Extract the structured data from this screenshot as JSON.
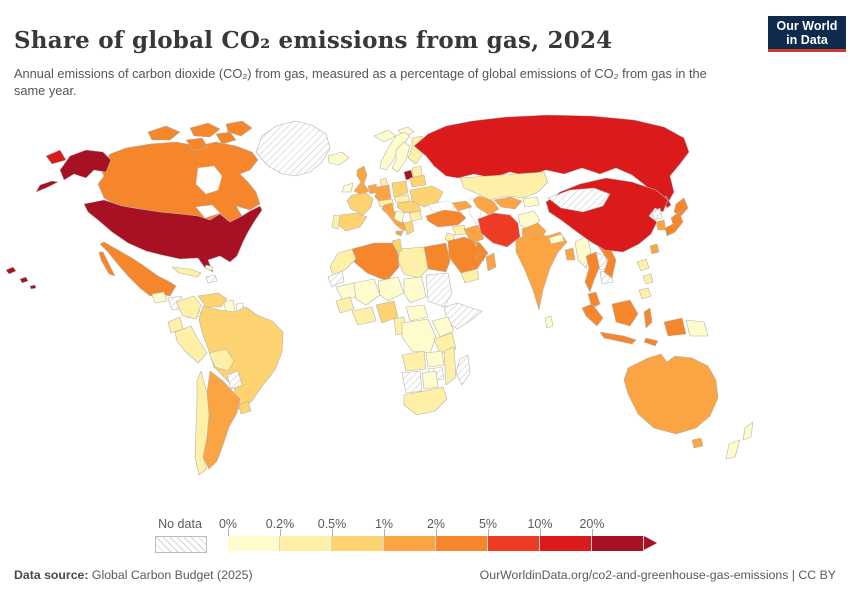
{
  "header": {
    "title": "Share of global CO₂ emissions from gas, 2024",
    "subtitle": "Annual emissions of carbon dioxide (CO₂) from gas, measured as a percentage of global emissions of CO₂ from gas in the same year.",
    "logo": {
      "line1": "Our World",
      "line2": "in Data",
      "bg_color": "#0E2A4C",
      "accent_color": "#D13A2A"
    }
  },
  "legend": {
    "no_data_label": "No data",
    "tick_labels": [
      "0%",
      "0.2%",
      "0.5%",
      "1%",
      "2%",
      "5%",
      "10%",
      "20%"
    ]
  },
  "footer": {
    "source_label": "Data source:",
    "source_text": " Global Carbon Budget (2025)",
    "credit_text": "OurWorldinData.org/co2-and-greenhouse-gas-emissions | CC BY"
  },
  "chart_data": {
    "type": "choropleth_map",
    "title": "Share of global CO₂ emissions from gas, 2024",
    "year": 2024,
    "unit": "% of global CO₂ emissions from gas",
    "legend_position": "bottom",
    "no_data_style": "hatched",
    "bins": [
      {
        "label": "0%–0.2%",
        "color": "#FEFBCC"
      },
      {
        "label": "0.2%–0.5%",
        "color": "#FEF0A6"
      },
      {
        "label": "0.5%–1%",
        "color": "#FDD271"
      },
      {
        "label": "1%–2%",
        "color": "#FAA443"
      },
      {
        "label": "2%–5%",
        "color": "#F6862B"
      },
      {
        "label": "5%–10%",
        "color": "#EE3C24"
      },
      {
        "label": "10%–20%",
        "color": "#DB1A1C"
      },
      {
        "label": "20%+",
        "color": "#A81023"
      }
    ],
    "country_bins": {
      "united-states": 7,
      "canada": 4,
      "mexico": 4,
      "greenland": "no-data",
      "cuba": 1,
      "hispaniola": "no-data",
      "guatemala": 0,
      "honduras-nicaragua": "no-data",
      "costa-rica-panama": 0,
      "bahamas": 0,
      "iceland": 0,
      "colombia": 1,
      "venezuela": 2,
      "guyana-suriname": 0,
      "french-guiana": "no-data",
      "ecuador": 1,
      "peru": 1,
      "brazil": 2,
      "bolivia": 1,
      "paraguay": "no-data",
      "uruguay": 2,
      "argentina": 3,
      "chile": 1,
      "ireland": 0,
      "united-kingdom": 3,
      "norway": 0,
      "sweden": 0,
      "finland": 1,
      "denmark": 1,
      "baltics": 1,
      "estonia": 7,
      "netherlands-belgium": 3,
      "germany": 3,
      "france": 2,
      "spain": 2,
      "portugal": 1,
      "italy": 3,
      "switzerland-austria": 1,
      "poland": 2,
      "czech-slovakia": 1,
      "hungary-romania": 2,
      "balkans": 0,
      "greece": 2,
      "bulgaria": 1,
      "ukraine": 2,
      "belarus": 2,
      "svalbard": 0,
      "russia": 6,
      "kazakhstan": 1,
      "uzbekistan": 3,
      "turkmenistan": 3,
      "kyrgyzstan-tajikistan": 0,
      "caucasus": 3,
      "turkey": 4,
      "syria": 1,
      "israel-jordan": 1,
      "iraq": 3,
      "iran": 5,
      "afghanistan": 0,
      "pakistan": 3,
      "saudi-arabia": 4,
      "yemen": 1,
      "oman": 3,
      "uae-qatar": 4,
      "kuwait": 3,
      "egypt": 4,
      "libya": 1,
      "tunisia": 2,
      "algeria": 4,
      "morocco": 1,
      "western-sahara": "no-data",
      "mauritania": 0,
      "mali": 0,
      "niger": 0,
      "chad": 0,
      "sudan": "no-data",
      "horn-of-africa": "no-data",
      "senegal-guinea": 1,
      "ivory-coast-ghana": 1,
      "nigeria": 2,
      "cameroon-gabon": 1,
      "central-african-republic": 0,
      "dr-congo": 0,
      "uganda-kenya": 0,
      "tanzania": 1,
      "angola": 1,
      "zambia": 0,
      "zimbabwe": "no-data",
      "mozambique": 1,
      "namibia": "no-data",
      "botswana": 0,
      "south-africa": 1,
      "madagascar": "no-data",
      "india": 3,
      "nepal": 0,
      "bangladesh": 3,
      "sri-lanka": 0,
      "myanmar": 0,
      "thailand": 4,
      "laos": "no-data",
      "cambodia": "no-data",
      "vietnam": 4,
      "malaysia": 4,
      "indonesia": 4,
      "china": 6,
      "mongolia": "no-data",
      "north-korea": "no-data",
      "south-korea": 3,
      "japan": 4,
      "taiwan": 3,
      "philippines": 1,
      "papua-new-guinea": 0,
      "australia": 3,
      "new-zealand": 0
    }
  }
}
